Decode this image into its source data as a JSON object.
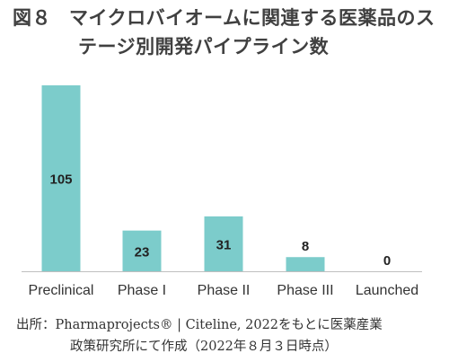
{
  "title": {
    "figure_no": "図８",
    "line1": "マイクロバイオームに関連する医薬品のス",
    "line2": "テージ別開発パイプライン数"
  },
  "source": {
    "line1": "出所：Pharmaprojects® | Citeline, 2022をもとに医薬産業",
    "line2": "政策研究所にて作成（2022年８月３日時点）"
  },
  "colors": {
    "bar": "#7ccccb",
    "axis": "#bfbfbf",
    "value_label": "#222222",
    "tick_label": "#333333"
  },
  "chart_data": {
    "type": "bar",
    "categories": [
      "Preclinical",
      "Phase I",
      "Phase II",
      "Phase III",
      "Launched"
    ],
    "values": [
      105,
      23,
      31,
      8,
      0
    ],
    "title": "",
    "xlabel": "",
    "ylabel": "",
    "ylim": [
      0,
      105
    ],
    "grid": false,
    "legend": "none",
    "data_labels": true
  }
}
